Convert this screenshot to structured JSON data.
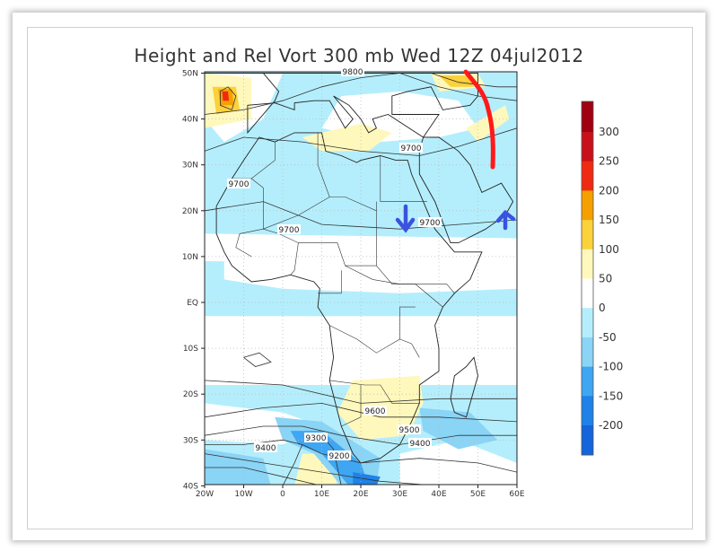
{
  "title": "Height and Rel Vort 300 mb Wed 12Z 04jul2012",
  "lat_ticks": [
    "50N",
    "40N",
    "30N",
    "20N",
    "10N",
    "EQ",
    "10S",
    "20S",
    "30S",
    "40S"
  ],
  "lon_ticks": [
    "20W",
    "10W",
    "0",
    "10E",
    "20E",
    "30E",
    "40E",
    "50E",
    "60E"
  ],
  "contour_labels": [
    "9800",
    "9700",
    "9700",
    "9700",
    "9700",
    "9600",
    "9500",
    "9400",
    "9400",
    "9300",
    "9200"
  ],
  "colorbar": {
    "labels": [
      "300",
      "250",
      "200",
      "150",
      "100",
      "50",
      "0",
      "-50",
      "-100",
      "-150",
      "-200"
    ],
    "colors": [
      "#a0000f",
      "#c8101a",
      "#f02a12",
      "#f5a000",
      "#fbd13c",
      "#fff8bc",
      "#ffffff",
      "#b4eefc",
      "#8ad4f6",
      "#3ea6f2",
      "#1e82e8",
      "#1464dc"
    ]
  },
  "annotations": {
    "red_line_color": "#ff1a1a",
    "arrow_color": "#3b52e0"
  }
}
